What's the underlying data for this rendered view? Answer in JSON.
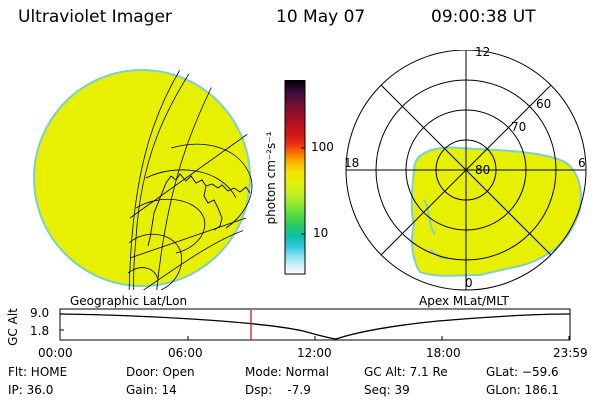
{
  "header": {
    "instrument": "Ultraviolet Imager",
    "date": "10 May 07",
    "time": "09:00:38 UT"
  },
  "colorbar": {
    "unit_label": "photon cm⁻²s⁻¹",
    "tick_100": "100",
    "tick_10": "10",
    "colors_top_to_bottom": [
      "#000000",
      "#3a0a3a",
      "#7a1030",
      "#b01020",
      "#d81818",
      "#f03a10",
      "#f57a00",
      "#f8b000",
      "#f5e000",
      "#e8f000",
      "#c8f020",
      "#90e830",
      "#50d840",
      "#20c870",
      "#10c0b0",
      "#30c8e0",
      "#90e0f0",
      "#d8f0f8",
      "#ffffff"
    ]
  },
  "polar": {
    "ring_labels": [
      "80",
      "70",
      "60"
    ],
    "hour_12": "12",
    "hour_18": "18",
    "hour_6": "6",
    "hour_0": "0"
  },
  "map_labels": {
    "left": "Geographic Lat/Lon",
    "right": "Apex MLat/MLT"
  },
  "altitude_plot": {
    "ylabel": "GC Alt",
    "ytick_top": "9.0",
    "ytick_bottom": "1.8",
    "xticks": [
      "00:00",
      "06:00",
      "12:00",
      "18:00",
      "23:59"
    ]
  },
  "info": {
    "col1": [
      "Flt: HOME",
      "IP: 36.0"
    ],
    "col2": [
      "Door: Open",
      "Gain: 14"
    ],
    "col3": [
      "Mode: Normal",
      "Dsp:    -7.9"
    ],
    "col4": [
      "GC Alt: 7.1 Re",
      "Seq: 39"
    ],
    "col5": [
      "GLat: −59.6",
      "GLon: 186.1"
    ]
  },
  "colors": {
    "emission": "#e6f000",
    "limb": "#7fd0c8",
    "time_marker": "#d02020"
  }
}
